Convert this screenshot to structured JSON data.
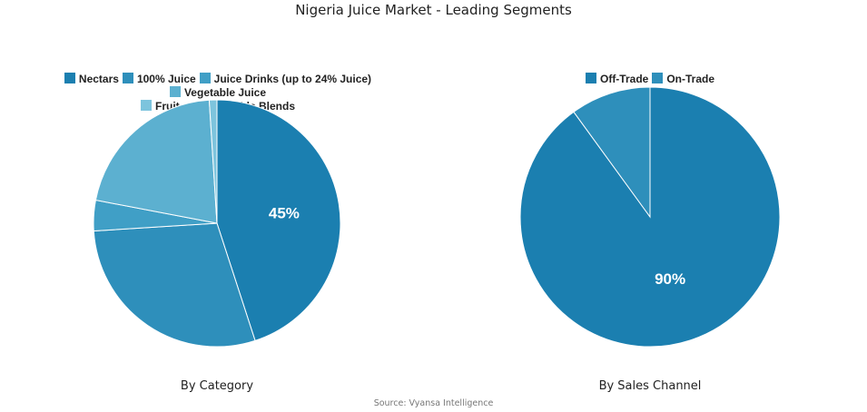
{
  "chart_data": [
    {
      "type": "pie",
      "title": "",
      "subtitle": "By Category",
      "legend_position": "top",
      "categories": [
        "Nectars",
        "100% Juice",
        "Juice Drinks (up to 24% Juice)",
        "Vegetable Juice",
        "Fruit and Vegetable Blends"
      ],
      "values": [
        45,
        29,
        4,
        21,
        1
      ],
      "colors": [
        "#1b7fb0",
        "#2e8fbb",
        "#409fc6",
        "#5cb0d0",
        "#7dc4dd"
      ],
      "data_labels": [
        "45%",
        "",
        "",
        "",
        ""
      ]
    },
    {
      "type": "pie",
      "title": "",
      "subtitle": "By Sales Channel",
      "legend_position": "top",
      "categories": [
        "Off-Trade",
        "On-Trade"
      ],
      "values": [
        90,
        10
      ],
      "colors": [
        "#1b7fb0",
        "#2e8fbb"
      ],
      "data_labels": [
        "90%",
        ""
      ]
    }
  ],
  "title": "Nigeria Juice Market - Leading Segments",
  "source": "Source: Vyansa Intelligence"
}
